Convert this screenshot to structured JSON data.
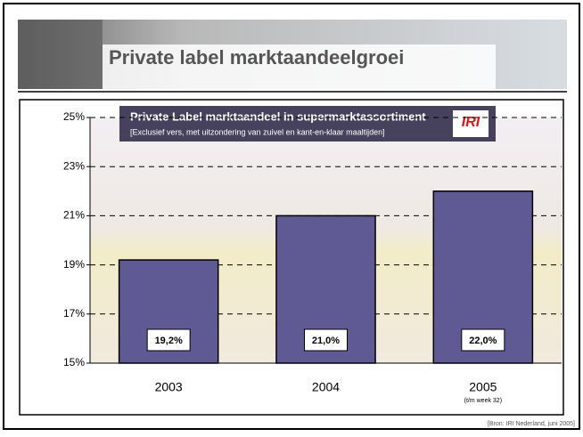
{
  "header": {
    "title": "Private label marktaandeelgroei"
  },
  "chart_data": {
    "type": "bar",
    "title": "Private Label marktaandeel in supermarktassortiment",
    "subtitle": "[Exclusief vers, met uitzondering van zuivel en kant-en-klaar maaltijden]",
    "logo": "IRI",
    "categories": [
      "2003",
      "2004",
      "2005"
    ],
    "category_sublabels": [
      null,
      null,
      "(t/m week 32)"
    ],
    "values": [
      19.2,
      21.0,
      22.0
    ],
    "value_labels": [
      "19,2%",
      "21,0%",
      "22,0%"
    ],
    "color": "#5f5a94",
    "ylim": [
      15,
      25
    ],
    "yticks": [
      {
        "value": 15,
        "label": "15%"
      },
      {
        "value": 17,
        "label": "17%"
      },
      {
        "value": 19,
        "label": "19%"
      },
      {
        "value": 21,
        "label": "21%"
      },
      {
        "value": 23,
        "label": "23%"
      },
      {
        "value": 25,
        "label": "25%"
      }
    ],
    "grid": true
  },
  "source": "[Bron: IRI Nederland, juni 2005]"
}
